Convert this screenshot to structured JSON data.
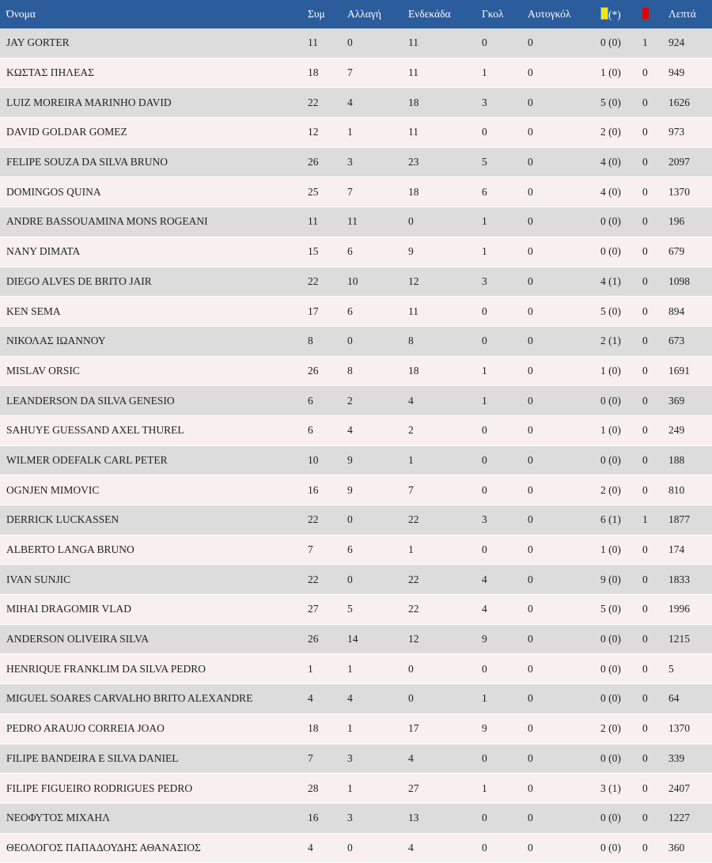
{
  "header": {
    "name": "Όνομα",
    "apps": "Συμ",
    "subs": "Αλλαγή",
    "starts": "Ενδεκάδα",
    "goals": "Γκολ",
    "own_goals": "Αυτογκόλ",
    "yellow_suffix": "(*)",
    "minutes": "Λεπτά"
  },
  "colors": {
    "header_bg": "#2b5c9c",
    "row_odd": "#dcdcdc",
    "row_even": "#f8eff1",
    "yellow_card": "#f6e600",
    "red_card": "#e00000"
  },
  "icons": {
    "yellow": "yellow-card-icon",
    "red": "red-card-icon"
  },
  "rows": [
    [
      "JAY GORTER",
      "11",
      "0",
      "11",
      "0",
      "0",
      "0 (0)",
      "1",
      "924"
    ],
    [
      "ΚΩΣΤΑΣ ΠΗΛΕΑΣ",
      "18",
      "7",
      "11",
      "1",
      "0",
      "1 (0)",
      "0",
      "949"
    ],
    [
      "LUIZ MOREIRA MARINHO DAVID",
      "22",
      "4",
      "18",
      "3",
      "0",
      "5 (0)",
      "0",
      "1626"
    ],
    [
      "DAVID GOLDAR GOMEZ",
      "12",
      "1",
      "11",
      "0",
      "0",
      "2 (0)",
      "0",
      "973"
    ],
    [
      "FELIPE SOUZA DA SILVA BRUNO",
      "26",
      "3",
      "23",
      "5",
      "0",
      "4 (0)",
      "0",
      "2097"
    ],
    [
      "DOMINGOS QUINA",
      "25",
      "7",
      "18",
      "6",
      "0",
      "4 (0)",
      "0",
      "1370"
    ],
    [
      "ANDRE BASSOUAMINA MONS ROGEANI",
      "11",
      "11",
      "0",
      "1",
      "0",
      "0 (0)",
      "0",
      "196"
    ],
    [
      "NANY DIMATA",
      "15",
      "6",
      "9",
      "1",
      "0",
      "0 (0)",
      "0",
      "679"
    ],
    [
      "DIEGO ALVES DE BRITO JAIR",
      "22",
      "10",
      "12",
      "3",
      "0",
      "4 (1)",
      "0",
      "1098"
    ],
    [
      "KEN SEMA",
      "17",
      "6",
      "11",
      "0",
      "0",
      "5 (0)",
      "0",
      "894"
    ],
    [
      "ΝΙΚΟΛΑΣ ΙΩΑΝΝΟΥ",
      "8",
      "0",
      "8",
      "0",
      "0",
      "2 (1)",
      "0",
      "673"
    ],
    [
      "MISLAV ORSIC",
      "26",
      "8",
      "18",
      "1",
      "0",
      "1 (0)",
      "0",
      "1691"
    ],
    [
      "LEANDERSON DA SILVA GENESIO",
      "6",
      "2",
      "4",
      "1",
      "0",
      "0 (0)",
      "0",
      "369"
    ],
    [
      "SAHUYE GUESSAND AXEL THUREL",
      "6",
      "4",
      "2",
      "0",
      "0",
      "1 (0)",
      "0",
      "249"
    ],
    [
      "WILMER ODEFALK CARL PETER",
      "10",
      "9",
      "1",
      "0",
      "0",
      "0 (0)",
      "0",
      "188"
    ],
    [
      "OGNJEN MIMOVIC",
      "16",
      "9",
      "7",
      "0",
      "0",
      "2 (0)",
      "0",
      "810"
    ],
    [
      "DERRICK LUCKASSEN",
      "22",
      "0",
      "22",
      "3",
      "0",
      "6 (1)",
      "1",
      "1877"
    ],
    [
      "ALBERTO LANGA BRUNO",
      "7",
      "6",
      "1",
      "0",
      "0",
      "1 (0)",
      "0",
      "174"
    ],
    [
      "IVAN SUNJIC",
      "22",
      "0",
      "22",
      "4",
      "0",
      "9 (0)",
      "0",
      "1833"
    ],
    [
      "MIHAI DRAGOMIR VLAD",
      "27",
      "5",
      "22",
      "4",
      "0",
      "5 (0)",
      "0",
      "1996"
    ],
    [
      "ANDERSON OLIVEIRA SILVA",
      "26",
      "14",
      "12",
      "9",
      "0",
      "0 (0)",
      "0",
      "1215"
    ],
    [
      "HENRIQUE FRANKLIM DA SILVA PEDRO",
      "1",
      "1",
      "0",
      "0",
      "0",
      "0 (0)",
      "0",
      "5"
    ],
    [
      "MIGUEL SOARES CARVALHO BRITO ALEXANDRE",
      "4",
      "4",
      "0",
      "1",
      "0",
      "0 (0)",
      "0",
      "64"
    ],
    [
      "PEDRO ARAUJO CORREIA JOAO",
      "18",
      "1",
      "17",
      "9",
      "0",
      "2 (0)",
      "0",
      "1370"
    ],
    [
      "FILIPE BANDEIRA E SILVA DANIEL",
      "7",
      "3",
      "4",
      "0",
      "0",
      "0 (0)",
      "0",
      "339"
    ],
    [
      "FILIPE FIGUEIRO RODRIGUES PEDRO",
      "28",
      "1",
      "27",
      "1",
      "0",
      "3 (1)",
      "0",
      "2407"
    ],
    [
      "ΝΕΟΦΥΤΟΣ ΜΙΧΑΗΛ",
      "16",
      "3",
      "13",
      "0",
      "0",
      "0 (0)",
      "0",
      "1227"
    ],
    [
      "ΘΕΟΛΟΓΟΣ ΠΑΠΑΔΟΥΔΗΣ ΑΘΑΝΑΣΙΟΣ",
      "4",
      "0",
      "4",
      "0",
      "0",
      "0 (0)",
      "0",
      "360"
    ]
  ]
}
